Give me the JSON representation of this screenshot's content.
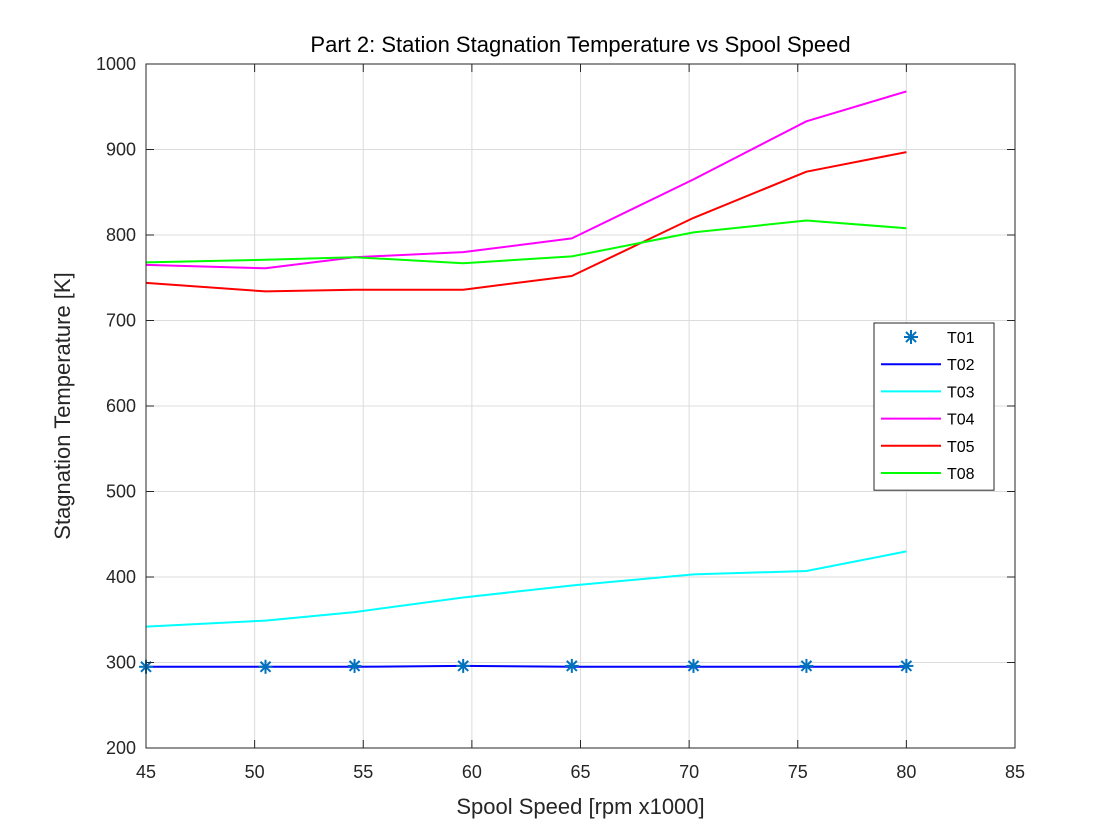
{
  "chart_data": {
    "type": "line",
    "title": "Part 2: Station Stagnation Temperature vs Spool Speed",
    "xlabel": "Spool Speed [rpm x1000]",
    "ylabel": "Stagnation Temperature [K]",
    "xlim": [
      45,
      85
    ],
    "ylim": [
      200,
      1000
    ],
    "xticks": [
      45,
      50,
      55,
      60,
      65,
      70,
      75,
      80,
      85
    ],
    "yticks": [
      200,
      300,
      400,
      500,
      600,
      700,
      800,
      900,
      1000
    ],
    "grid": true,
    "legend_position": "right",
    "x": [
      45.0,
      50.5,
      54.6,
      59.6,
      64.6,
      70.2,
      75.4,
      80.0
    ],
    "series": [
      {
        "name": "T01",
        "color": "#0072BD",
        "marker": "asterisk",
        "line": false,
        "values": [
          295,
          295,
          296,
          296,
          296,
          296,
          296,
          296
        ]
      },
      {
        "name": "T02",
        "color": "#0000FF",
        "marker": "none",
        "line": true,
        "values": [
          295,
          295,
          295,
          296,
          295,
          295,
          295,
          295
        ]
      },
      {
        "name": "T03",
        "color": "#00FFFF",
        "marker": "none",
        "line": true,
        "values": [
          342,
          349,
          359,
          376,
          390,
          403,
          407,
          430
        ]
      },
      {
        "name": "T04",
        "color": "#FF00FF",
        "marker": "none",
        "line": true,
        "values": [
          765,
          761,
          774,
          780,
          796,
          865,
          933,
          968
        ]
      },
      {
        "name": "T05",
        "color": "#FF0000",
        "marker": "none",
        "line": true,
        "values": [
          744,
          734,
          736,
          736,
          752,
          820,
          874,
          897
        ]
      },
      {
        "name": "T08",
        "color": "#00FF00",
        "marker": "none",
        "line": true,
        "values": [
          768,
          771,
          774,
          767,
          775,
          803,
          817,
          808
        ]
      }
    ]
  }
}
